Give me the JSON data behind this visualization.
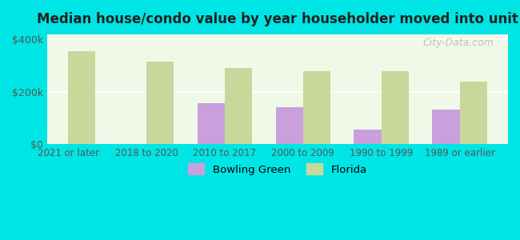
{
  "title": "Median house/condo value by year householder moved into unit",
  "categories": [
    "2021 or later",
    "2018 to 2020",
    "2010 to 2017",
    "2000 to 2009",
    "1990 to 1999",
    "1989 or earlier"
  ],
  "bowling_green": [
    null,
    null,
    155000,
    140000,
    55000,
    130000
  ],
  "florida": [
    355000,
    315000,
    290000,
    280000,
    278000,
    240000
  ],
  "bowling_green_color": "#c9a0dc",
  "florida_color": "#c8d89a",
  "background_color": "#00e5e5",
  "plot_bg_color": "#f0f8e8",
  "ylabel_ticks": [
    "$0",
    "$200k",
    "$400k"
  ],
  "ytick_values": [
    0,
    200000,
    400000
  ],
  "ylim": [
    0,
    420000
  ],
  "bar_width": 0.35,
  "legend_bowling_green": "Bowling Green",
  "legend_florida": "Florida",
  "watermark": "City-Data.com"
}
